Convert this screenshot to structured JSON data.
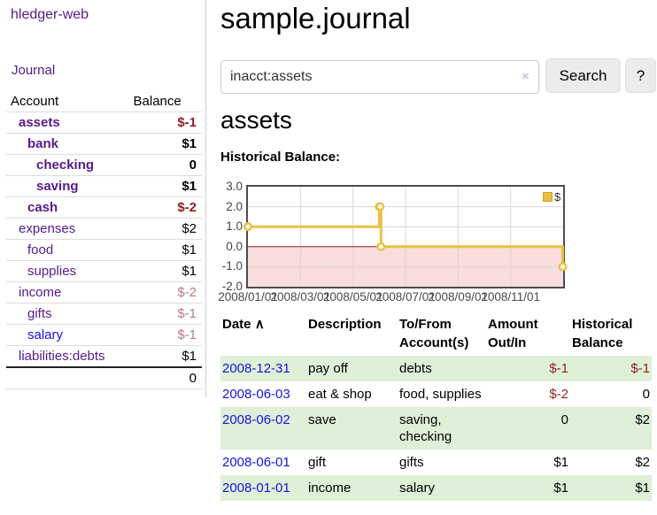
{
  "app": {
    "title": "hledger-web"
  },
  "sidebar": {
    "journal_link": "Journal",
    "accounts": {
      "header_account": "Account",
      "header_balance": "Balance",
      "rows": [
        {
          "name": "assets",
          "balance": "$-1"
        },
        {
          "name": "bank",
          "balance": "$1"
        },
        {
          "name": "checking",
          "balance": "0"
        },
        {
          "name": "saving",
          "balance": "$1"
        },
        {
          "name": "cash",
          "balance": "$-2"
        },
        {
          "name": "expenses",
          "balance": "$2"
        },
        {
          "name": "food",
          "balance": "$1"
        },
        {
          "name": "supplies",
          "balance": "$1"
        },
        {
          "name": "income",
          "balance": "$-2"
        },
        {
          "name": "gifts",
          "balance": "$-1"
        },
        {
          "name": "salary",
          "balance": "$-1"
        },
        {
          "name": "liabilities:debts",
          "balance": "$1"
        }
      ],
      "total": "0"
    }
  },
  "main": {
    "title": "sample.journal",
    "search": {
      "value": "inacct:assets",
      "clear_icon": "×",
      "button_label": "Search",
      "help_label": "?"
    },
    "account_heading": "assets",
    "chart_label": "Historical Balance:"
  },
  "chart_data": {
    "type": "line",
    "style": "step",
    "title": "Historical Balance",
    "series": [
      {
        "name": "$",
        "color": "#e9c044",
        "points": [
          [
            "2008-01-01",
            1
          ],
          [
            "2008-06-01",
            2
          ],
          [
            "2008-06-02",
            2
          ],
          [
            "2008-06-03",
            0
          ],
          [
            "2008-12-31",
            -1
          ]
        ]
      }
    ],
    "ylim": [
      -2,
      3
    ],
    "yticks": [
      "3.0",
      "2.0",
      "1.0",
      "0.0",
      "-1.0",
      "-2.0"
    ],
    "ygridlines": [
      2,
      1,
      -1
    ],
    "xticks": [
      "2008/01/01",
      "2008/03/01",
      "2008/05/01",
      "2008/07/01",
      "2008/09/01",
      "2008/11/01"
    ],
    "xrange": [
      "2008-01-01",
      "2008-12-31"
    ],
    "legend": {
      "label": "$",
      "position": "top-right"
    },
    "grid_color": "#d8d8d8",
    "zero_line_color": "#9b1c1c",
    "negative_region_color": "#fadddd"
  },
  "register_table": {
    "sort_icon": "∧",
    "headers": {
      "date": "Date",
      "description": "Description",
      "accounts": "To/From Account(s)",
      "amount": "Amount Out/In",
      "balance": "Historical Balance"
    },
    "rows": [
      {
        "date": "2008-12-31",
        "description": "pay off",
        "accounts": "debts",
        "amount": "$-1",
        "balance": "$-1"
      },
      {
        "date": "2008-06-03",
        "description": "eat & shop",
        "accounts": "food, supplies",
        "amount": "$-2",
        "balance": "0"
      },
      {
        "date": "2008-06-02",
        "description": "save",
        "accounts": "saving, checking",
        "amount": "0",
        "balance": "$2"
      },
      {
        "date": "2008-06-01",
        "description": "gift",
        "accounts": "gifts",
        "amount": "$1",
        "balance": "$2"
      },
      {
        "date": "2008-01-01",
        "description": "income",
        "accounts": "salary",
        "amount": "$1",
        "balance": "$1"
      }
    ]
  }
}
